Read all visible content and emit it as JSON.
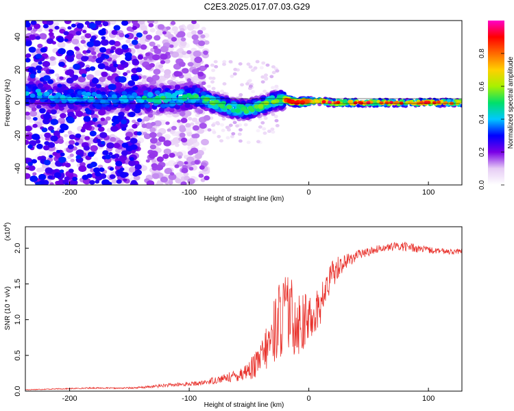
{
  "figure": {
    "title": "C2E3.2025.017.07.03.G29"
  },
  "chart_data": [
    {
      "type": "heatmap",
      "xlabel": "Height of straight line (km)",
      "ylabel": "Frequency (Hz)",
      "xlim": [
        -237,
        128
      ],
      "ylim": [
        -50,
        50
      ],
      "x_ticks": [
        -200,
        -100,
        0,
        100
      ],
      "y_ticks": [
        -40,
        -20,
        0,
        20,
        40
      ],
      "colorbar": {
        "label": "Normalized spectral amplitude",
        "range": [
          0,
          1
        ],
        "ticks": [
          "0.0",
          "0.2",
          "0.4",
          "0.6",
          "0.8"
        ],
        "tick_values": [
          0,
          0.2,
          0.4,
          0.6,
          0.8
        ],
        "colors": [
          "#ffffff",
          "#e6ccf5",
          "#7a00e6",
          "#0000ff",
          "#00c8ff",
          "#00e06a",
          "#a8f000",
          "#ffd000",
          "#ff6a00",
          "#ff0000",
          "#ff00c8"
        ]
      },
      "ridge_x": [
        -230,
        -210,
        -190,
        -170,
        -150,
        -130,
        -110,
        -95,
        -80,
        -70,
        -60,
        -50,
        -40,
        -30,
        -20,
        -10,
        0,
        10,
        20,
        40,
        60,
        80,
        100,
        128
      ],
      "ridge_y": [
        6,
        3,
        4,
        2,
        3,
        2,
        3,
        4,
        0,
        -2,
        -4,
        -4,
        -2,
        1,
        2,
        0,
        1,
        1,
        0,
        0,
        0,
        0,
        0,
        0
      ]
    },
    {
      "type": "line",
      "xlabel": "Height of straight line (km)",
      "ylabel": "SNR (10 * v/v)",
      "scale_label": "(x10",
      "scale_exponent": "4",
      "xlim": [
        -237,
        128
      ],
      "ylim": [
        0,
        23000
      ],
      "x_ticks": [
        -200,
        -100,
        0,
        100
      ],
      "y_ticks": [
        0,
        5000,
        10000,
        15000,
        20000
      ],
      "y_tick_labels": [
        "0.0",
        "0.5",
        "1.0",
        "1.5",
        "2.0"
      ],
      "line_color": "#e8302a",
      "series": [
        {
          "x": [
            -237,
            -200,
            -180,
            -160,
            -140,
            -120,
            -100,
            -90,
            -80,
            -70,
            -60,
            -50,
            -45,
            -40,
            -35,
            -30,
            -25,
            -20,
            -15,
            -10,
            -5,
            0,
            5,
            10,
            15,
            20,
            25,
            30,
            35,
            40,
            50,
            60,
            70,
            80,
            90,
            100,
            110,
            128
          ],
          "values": [
            200,
            350,
            450,
            400,
            500,
            800,
            1000,
            1100,
            1500,
            1800,
            2200,
            3000,
            3500,
            4500,
            6000,
            8000,
            10000,
            11000,
            10500,
            10000,
            9500,
            10000,
            11000,
            12000,
            14500,
            16500,
            17500,
            18000,
            18500,
            19000,
            19500,
            20000,
            20200,
            20300,
            20000,
            19700,
            19600,
            19500
          ],
          "noise": [
            60,
            80,
            100,
            80,
            150,
            250,
            300,
            300,
            500,
            600,
            900,
            1400,
            1800,
            2500,
            3200,
            4500,
            5500,
            6000,
            5500,
            5000,
            4500,
            3500,
            3000,
            2800,
            2500,
            2000,
            1600,
            1200,
            900,
            700,
            600,
            500,
            600,
            700,
            600,
            500,
            400,
            400
          ]
        }
      ]
    }
  ]
}
